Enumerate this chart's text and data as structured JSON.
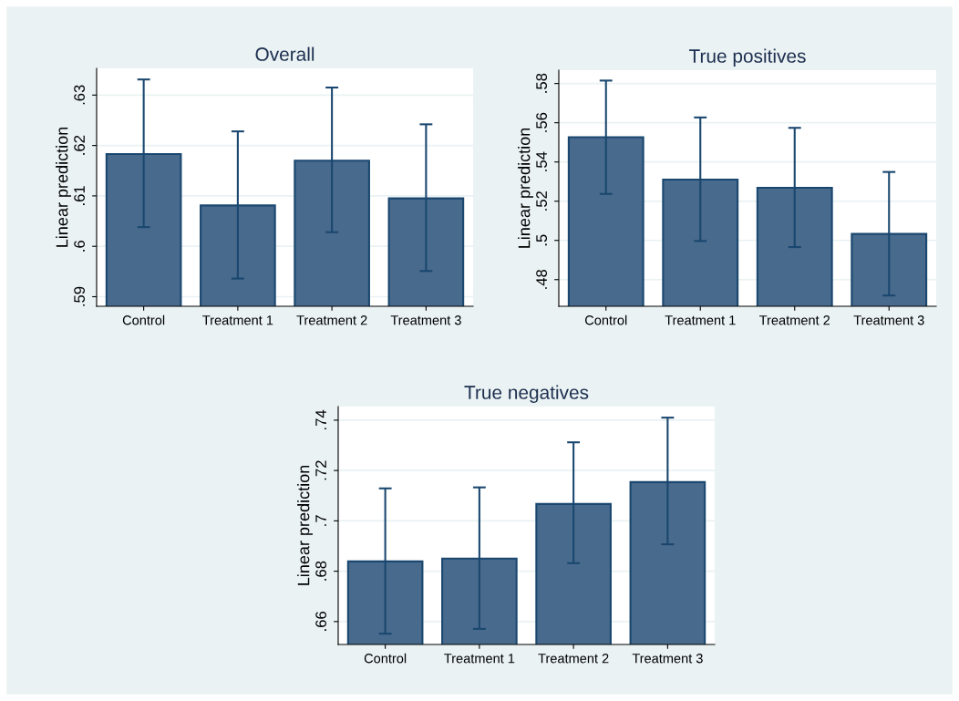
{
  "chart_data": [
    {
      "type": "bar",
      "title": "Overall",
      "ylabel": "Linear prediction",
      "categories": [
        "Control",
        "Treatment 1",
        "Treatment 2",
        "Treatment 3"
      ],
      "series": [
        {
          "color": "#486a8c",
          "values": [
            0.6183,
            0.6081,
            0.617,
            0.6095
          ],
          "errors": [
            [
              0.6038,
              0.6331
            ],
            [
              0.5936,
              0.6228
            ],
            [
              0.6028,
              0.6315
            ],
            [
              0.5951,
              0.6242
            ]
          ]
        }
      ],
      "ylim": [
        0.5881,
        0.6353
      ],
      "yticks": [
        {
          "value": 0.59,
          "label": ".59"
        },
        {
          "value": 0.6,
          "label": ".6"
        },
        {
          "value": 0.61,
          "label": ".61"
        },
        {
          "value": 0.62,
          "label": ".62"
        },
        {
          "value": 0.63,
          "label": ".63"
        }
      ],
      "grid": "y"
    },
    {
      "type": "bar",
      "title": "True positives",
      "ylabel": "Linear prediction",
      "categories": [
        "Control",
        "Treatment 1",
        "Treatment 2",
        "Treatment 3"
      ],
      "series": [
        {
          "color": "#486a8c",
          "values": [
            0.5526,
            0.531,
            0.5268,
            0.5033
          ],
          "errors": [
            [
              0.5237,
              0.5815
            ],
            [
              0.4997,
              0.5627
            ],
            [
              0.4966,
              0.5574
            ],
            [
              0.4719,
              0.5349
            ]
          ]
        }
      ],
      "ylim": [
        0.4664,
        0.5868
      ],
      "yticks": [
        {
          "value": 0.48,
          "label": ".48"
        },
        {
          "value": 0.5,
          "label": ".5"
        },
        {
          "value": 0.52,
          "label": ".52"
        },
        {
          "value": 0.54,
          "label": ".54"
        },
        {
          "value": 0.56,
          "label": ".56"
        },
        {
          "value": 0.58,
          "label": ".58"
        }
      ],
      "grid": "y"
    },
    {
      "type": "bar",
      "title": "True negatives",
      "ylabel": "Linear prediction",
      "categories": [
        "Control",
        "Treatment 1",
        "Treatment 2",
        "Treatment 3"
      ],
      "series": [
        {
          "color": "#486a8c",
          "values": [
            0.6839,
            0.685,
            0.7067,
            0.7154
          ],
          "errors": [
            [
              0.6552,
              0.7129
            ],
            [
              0.6571,
              0.7133
            ],
            [
              0.6832,
              0.7312
            ],
            [
              0.6907,
              0.741
            ]
          ]
        }
      ],
      "ylim": [
        0.6509,
        0.7454
      ],
      "yticks": [
        {
          "value": 0.66,
          "label": ".66"
        },
        {
          "value": 0.68,
          "label": ".68"
        },
        {
          "value": 0.7,
          "label": ".7"
        },
        {
          "value": 0.72,
          "label": ".72"
        },
        {
          "value": 0.74,
          "label": ".74"
        }
      ],
      "grid": "y"
    }
  ]
}
